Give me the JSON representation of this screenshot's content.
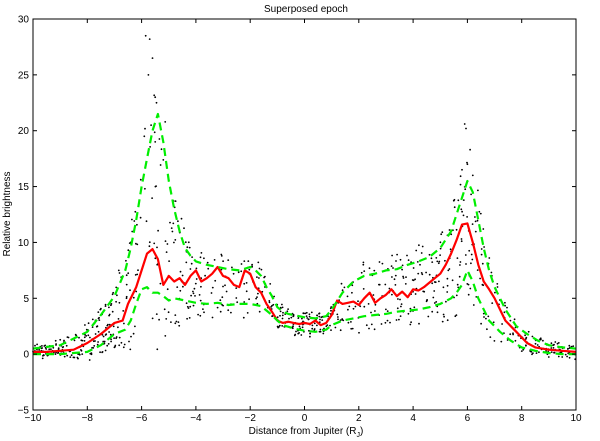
{
  "chart_data": {
    "type": "line",
    "title": "Superposed epoch",
    "xlabel": "Distance from Jupiter (R",
    "xlabel_subscript": "J",
    "xlabel_suffix": ")",
    "ylabel": "Relative brightness",
    "xlim": [
      -10,
      10
    ],
    "ylim": [
      -5,
      30
    ],
    "xticks": [
      -10,
      -8,
      -6,
      -4,
      -2,
      0,
      2,
      4,
      6,
      8,
      10
    ],
    "xtick_labels": [
      "−10",
      "−8",
      "−6",
      "−4",
      "−2",
      "0",
      "2",
      "4",
      "6",
      "8",
      "10"
    ],
    "yticks": [
      -5,
      0,
      5,
      10,
      15,
      20,
      25,
      30
    ],
    "ytick_labels": [
      "−5",
      "0",
      "5",
      "10",
      "15",
      "20",
      "25",
      "30"
    ],
    "grid": false,
    "colors": {
      "median": "#ff0000",
      "quartile": "#00ee00",
      "points": "#000000"
    },
    "series": [
      {
        "style": "solid",
        "color": "#ff0000",
        "x": [
          -10,
          -9.5,
          -9,
          -8.5,
          -8,
          -7.5,
          -7,
          -6.7,
          -6.5,
          -6.2,
          -6,
          -5.8,
          -5.6,
          -5.4,
          -5.2,
          -5,
          -4.8,
          -4.6,
          -4.4,
          -4.2,
          -4,
          -3.8,
          -3.6,
          -3.4,
          -3.2,
          -3,
          -2.8,
          -2.6,
          -2.4,
          -2.2,
          -2,
          -1.8,
          -1.6,
          -1.4,
          -1.2,
          -1,
          -0.8,
          -0.6,
          -0.4,
          -0.2,
          0,
          0.2,
          0.4,
          0.6,
          0.8,
          1,
          1.2,
          1.4,
          1.6,
          1.8,
          2,
          2.2,
          2.4,
          2.6,
          2.8,
          3,
          3.2,
          3.4,
          3.6,
          3.8,
          4,
          4.2,
          4.4,
          4.6,
          4.8,
          5,
          5.2,
          5.4,
          5.6,
          5.8,
          6,
          6.2,
          6.4,
          6.6,
          6.8,
          7,
          7.2,
          7.4,
          7.6,
          7.8,
          8,
          8.2,
          8.5,
          9,
          9.5,
          10
        ],
        "y": [
          0.2,
          0.2,
          0.3,
          0.4,
          1.0,
          1.8,
          2.8,
          3.0,
          4.5,
          6.0,
          7.5,
          9.0,
          9.4,
          8.5,
          6.2,
          7.0,
          6.5,
          6.8,
          6.2,
          7.0,
          7.5,
          6.5,
          6.8,
          7.2,
          7.8,
          7.0,
          6.8,
          6.2,
          6.0,
          7.5,
          7.2,
          6.0,
          5.5,
          4.5,
          3.8,
          3.0,
          2.8,
          2.9,
          2.8,
          2.7,
          2.8,
          2.7,
          3.0,
          2.6,
          2.8,
          3.5,
          4.8,
          4.5,
          4.6,
          4.7,
          4.4,
          5.0,
          5.5,
          4.6,
          5.0,
          5.3,
          5.8,
          5.2,
          5.6,
          5.1,
          5.8,
          5.7,
          6.0,
          6.4,
          6.8,
          7.2,
          8.0,
          9.0,
          10.2,
          11.6,
          11.7,
          10.0,
          8.0,
          6.5,
          5.8,
          5.0,
          4.0,
          3.0,
          2.5,
          2.0,
          1.5,
          1.0,
          0.6,
          0.4,
          0.3,
          0.2
        ]
      },
      {
        "style": "dashed",
        "color": "#00ee00",
        "x": [
          -10,
          -9,
          -8,
          -7.5,
          -7,
          -6.6,
          -6.4,
          -6.2,
          -6,
          -5.8,
          -5.6,
          -5.4,
          -5.2,
          -5,
          -4.8,
          -4.6,
          -4.4,
          -4.2,
          -4,
          -3.6,
          -3.2,
          -2.8,
          -2.4,
          -2,
          -1.8,
          -1.6,
          -1.4,
          -1.2,
          -1,
          -0.8,
          -0.6,
          -0.4,
          -0.2,
          0,
          0.4,
          0.8,
          1,
          1.4,
          1.8,
          2.2,
          2.6,
          3,
          3.4,
          3.8,
          4.2,
          4.6,
          5,
          5.4,
          5.6,
          5.8,
          6,
          6.2,
          6.4,
          6.6,
          6.8,
          7,
          7.4,
          7.8,
          8.2,
          8.6,
          9,
          9.5,
          10
        ],
        "y": [
          0.5,
          0.8,
          2.0,
          3.5,
          5.2,
          7.5,
          9.5,
          12.0,
          15.0,
          17.5,
          20.0,
          21.5,
          19.0,
          15.5,
          13.0,
          11.0,
          9.5,
          8.8,
          8.3,
          8.0,
          7.8,
          7.6,
          7.5,
          7.8,
          7.5,
          7.0,
          6.0,
          5.2,
          4.2,
          3.8,
          3.6,
          3.5,
          3.4,
          3.3,
          3.2,
          3.4,
          4.0,
          5.5,
          6.5,
          7.0,
          7.2,
          7.5,
          7.6,
          8.0,
          8.3,
          8.7,
          9.5,
          11.0,
          12.5,
          14.0,
          15.5,
          14.5,
          12.0,
          9.5,
          7.5,
          6.0,
          4.0,
          2.5,
          1.8,
          1.2,
          0.8,
          0.6,
          0.5
        ]
      },
      {
        "style": "dashed",
        "color": "#00ee00",
        "x": [
          -10,
          -9,
          -8,
          -7.5,
          -7,
          -6.6,
          -6.4,
          -6.2,
          -6,
          -5.8,
          -5.6,
          -5.4,
          -5.2,
          -5,
          -4.8,
          -4.4,
          -4,
          -3.6,
          -3.2,
          -2.8,
          -2.4,
          -2,
          -1.6,
          -1.2,
          -1,
          -0.8,
          -0.4,
          0,
          0.4,
          0.8,
          1,
          1.4,
          1.8,
          2.2,
          2.6,
          3,
          3.4,
          3.8,
          4.2,
          4.6,
          5,
          5.4,
          5.6,
          5.8,
          6,
          6.2,
          6.4,
          6.8,
          7.2,
          7.6,
          8,
          8.5,
          9,
          9.5,
          10
        ],
        "y": [
          0.0,
          0.0,
          0.2,
          0.8,
          1.8,
          2.2,
          3.0,
          4.5,
          5.8,
          6.0,
          5.5,
          5.5,
          5.2,
          4.8,
          5.0,
          4.8,
          4.6,
          4.5,
          4.6,
          4.4,
          4.5,
          4.5,
          4.3,
          3.5,
          3.0,
          2.6,
          2.3,
          2.1,
          2.0,
          2.2,
          2.6,
          3.0,
          3.2,
          3.4,
          3.5,
          3.6,
          3.8,
          3.9,
          4.0,
          4.2,
          4.5,
          5.0,
          5.5,
          6.2,
          7.5,
          6.5,
          5.0,
          3.0,
          2.0,
          1.2,
          0.6,
          0.3,
          0.1,
          0.0,
          0.0
        ]
      }
    ]
  }
}
